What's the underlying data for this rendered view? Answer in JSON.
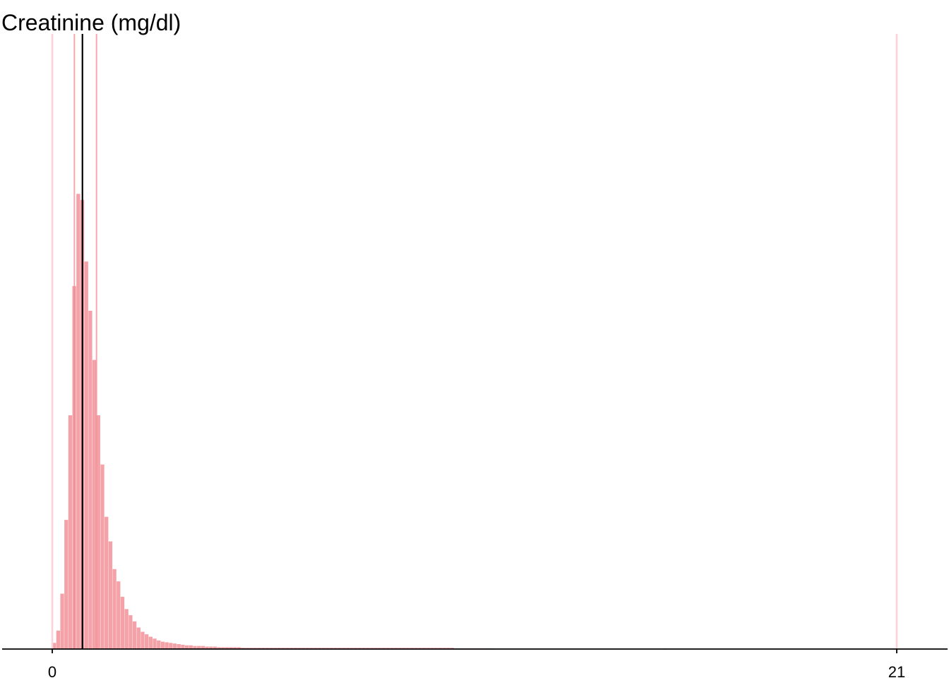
{
  "chart_data": {
    "type": "bar",
    "title": "Creatinine (mg/dl)",
    "xlabel": "",
    "ylabel": "",
    "xlim": [
      -1.3,
      22.3
    ],
    "ylim": [
      0,
      1000
    ],
    "bin_width": 0.1,
    "x_ticks": [
      {
        "value": 0,
        "label": "0"
      },
      {
        "value": 21,
        "label": "21"
      }
    ],
    "reference_lines": {
      "range_limits": [
        0,
        21
      ],
      "interval": [
        0.55,
        1.1
      ],
      "center": 0.75
    },
    "bins_x": [
      0.05,
      0.15,
      0.25,
      0.35,
      0.45,
      0.55,
      0.65,
      0.75,
      0.85,
      0.95,
      1.05,
      1.15,
      1.25,
      1.35,
      1.45,
      1.55,
      1.65,
      1.75,
      1.85,
      1.95,
      2.05,
      2.15,
      2.25,
      2.35,
      2.45,
      2.55,
      2.65,
      2.75,
      2.85,
      2.95,
      3.05,
      3.15,
      3.25,
      3.35,
      3.45,
      3.55,
      3.65,
      3.75,
      3.85,
      3.95,
      4.05,
      4.15,
      4.25,
      4.35,
      4.45,
      4.55,
      4.65,
      4.75,
      4.85,
      4.95,
      5.05,
      5.15,
      5.25,
      5.35,
      5.45,
      5.55,
      5.65,
      5.75,
      5.85,
      5.95,
      6.05,
      6.15,
      6.25,
      6.35,
      6.45,
      6.55,
      6.65,
      6.75,
      6.85,
      6.95,
      7.05,
      7.15,
      7.25,
      7.35,
      7.45,
      7.55,
      7.65,
      7.75,
      7.85,
      7.95,
      8.05,
      8.15,
      8.25,
      8.35,
      8.45,
      8.55,
      8.65,
      8.75,
      8.85,
      8.95,
      9.05,
      9.15,
      9.25,
      9.35,
      9.45,
      9.55,
      9.65,
      9.75,
      9.85,
      9.95,
      10.05,
      10.15,
      10.25,
      10.35,
      10.45,
      10.55,
      10.65,
      10.75,
      10.85,
      10.95,
      15.25
    ],
    "values": [
      10,
      30,
      90,
      210,
      380,
      590,
      740,
      730,
      630,
      550,
      470,
      380,
      300,
      215,
      175,
      130,
      110,
      85,
      65,
      55,
      45,
      35,
      28,
      24,
      20,
      17,
      14,
      12,
      11,
      10,
      9,
      8,
      7,
      6,
      6,
      5,
      5,
      5,
      4,
      4,
      4,
      3,
      3,
      3,
      3,
      3,
      3,
      2,
      2,
      2,
      2,
      2,
      2,
      2,
      2,
      2,
      2,
      2,
      2,
      2,
      2,
      2,
      2,
      2,
      2,
      2,
      2,
      2,
      2,
      2,
      2,
      2,
      2,
      2,
      2,
      2,
      2,
      2,
      2,
      2,
      2,
      2,
      2,
      2,
      2,
      2,
      2,
      2,
      2,
      2,
      2,
      2,
      2,
      2,
      2,
      2,
      2,
      2,
      2,
      2,
      1,
      1,
      1,
      1,
      1,
      1,
      1,
      1,
      1,
      1,
      1
    ],
    "colors": {
      "bar": "#f4a1a8",
      "range_line": "#ffd0d5",
      "interval_line": "#f08a93",
      "center_line": "#000000",
      "axis": "#000000"
    }
  }
}
